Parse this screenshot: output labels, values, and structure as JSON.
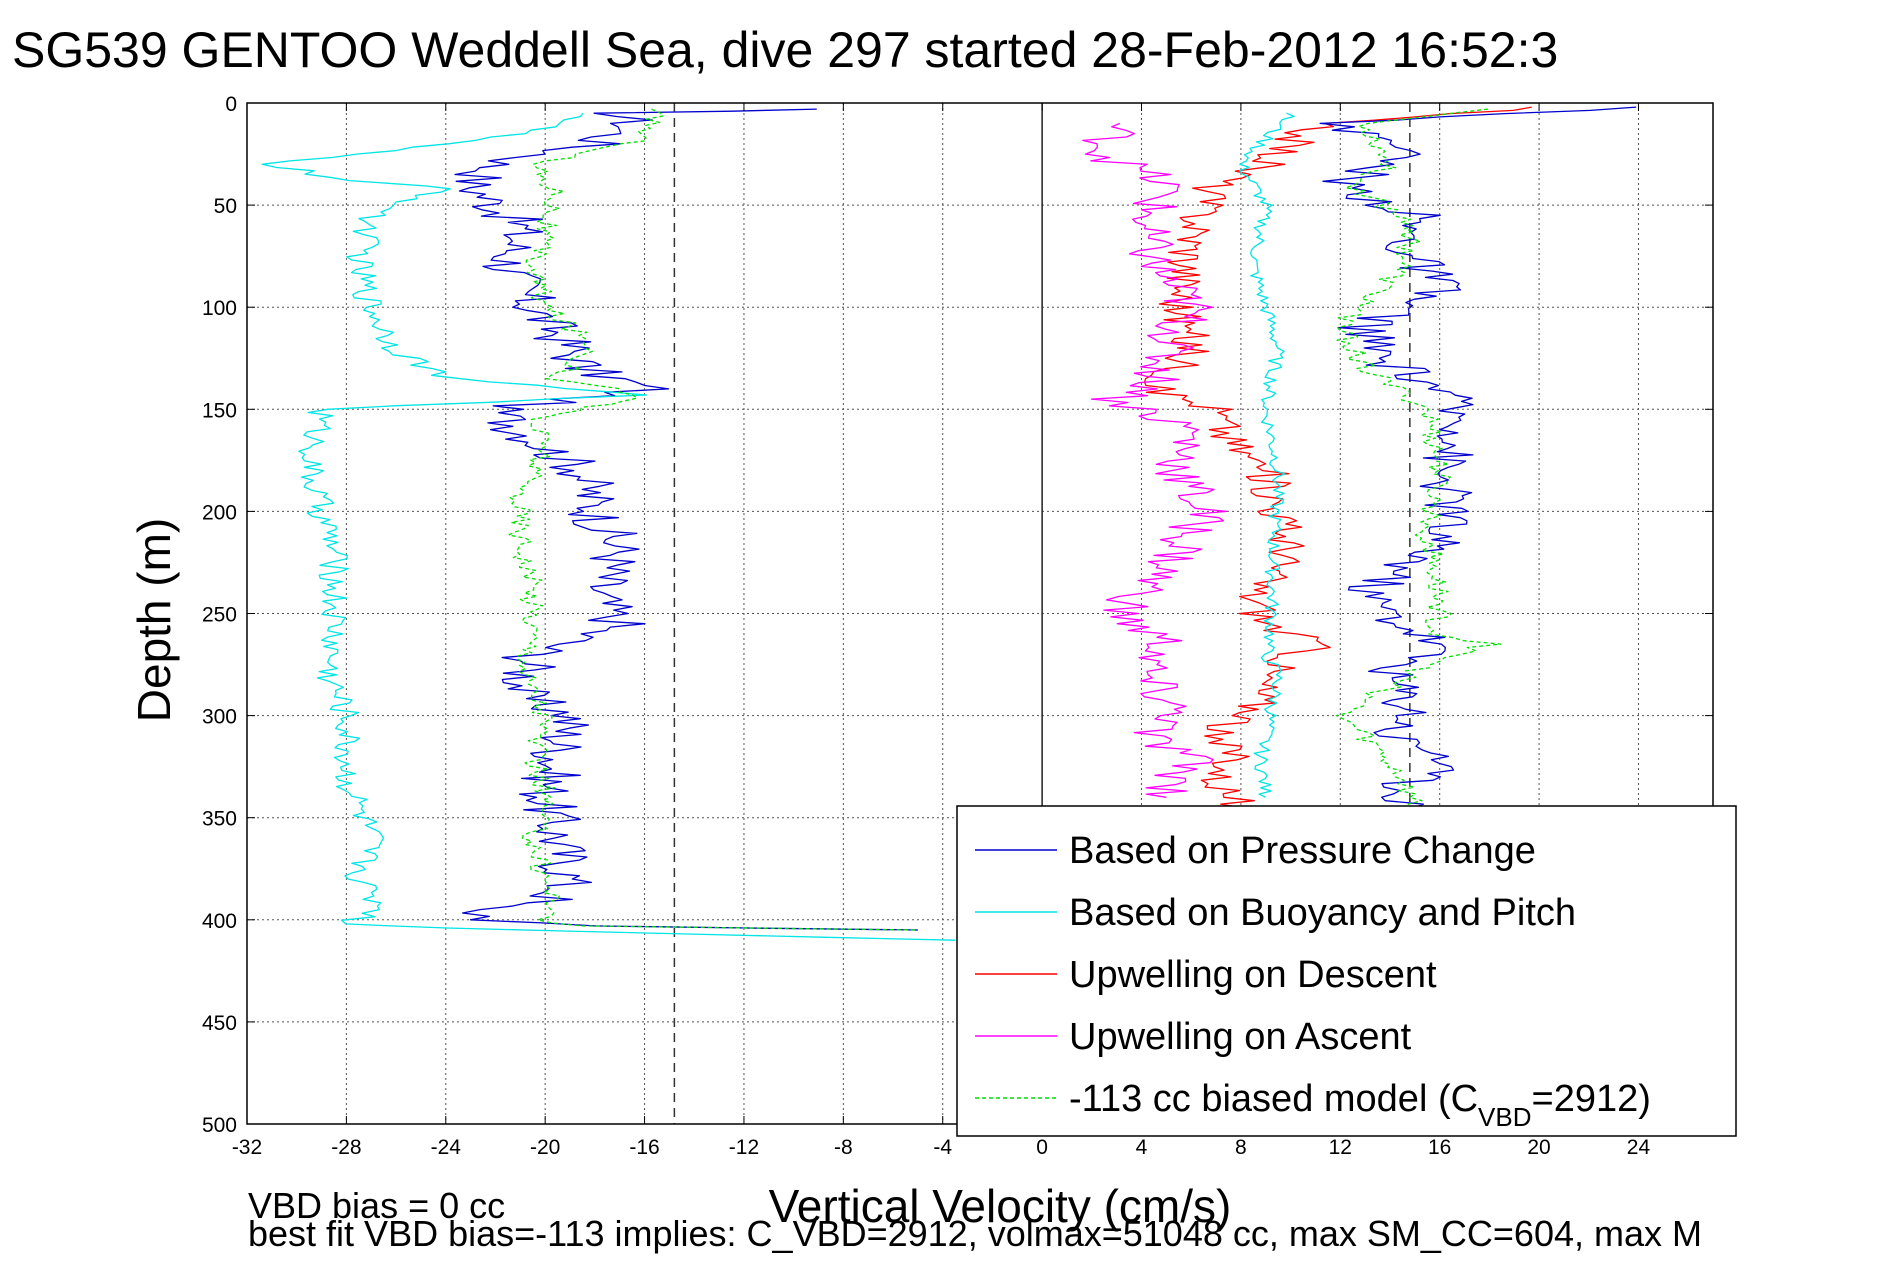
{
  "chart_data": {
    "type": "line",
    "title": "SG539 GENTOO Weddell Sea, dive 297 started 28-Feb-2012 16:52:3",
    "xlabel": "Vertical Velocity (cm/s)",
    "ylabel": "Depth (m)",
    "xlim": [
      -32,
      27
    ],
    "ylim": [
      0,
      500
    ],
    "y_reversed": true,
    "grid": true,
    "x_ticks": [
      -32,
      -28,
      -24,
      -20,
      -16,
      -12,
      -8,
      -4,
      0,
      4,
      8,
      12,
      16,
      20,
      24
    ],
    "y_ticks": [
      0,
      50,
      100,
      150,
      200,
      250,
      300,
      350,
      400,
      450,
      500
    ],
    "reference_lines": [
      {
        "style": "dashed",
        "x": -14.8
      },
      {
        "style": "solid",
        "x": 0
      },
      {
        "style": "dashed",
        "x": 14.8
      }
    ],
    "legend": {
      "placement": "bottom-right",
      "entries": [
        {
          "label": "Based on Pressure Change",
          "color": "#0000cc",
          "dash": "solid"
        },
        {
          "label": "Based on Buoyancy and Pitch",
          "color": "#00e5e5",
          "dash": "solid"
        },
        {
          "label": "Upwelling on Descent",
          "color": "#ff0000",
          "dash": "solid"
        },
        {
          "label": "Upwelling on Ascent",
          "color": "#ff00ff",
          "dash": "solid"
        },
        {
          "label_main": "-113 cc biased model (C",
          "label_sub": "VBD",
          "label_end": "=2912)",
          "color": "#00dd00",
          "dash": "dashed"
        }
      ]
    },
    "series": [
      {
        "name": "Based on Pressure Change",
        "color": "#0000cc",
        "dash": "solid",
        "x": [
          -10,
          -17,
          -16.5,
          -18,
          -22,
          -23,
          -21,
          -21.5,
          -20.5,
          -19,
          -18.5,
          -15.8,
          -22,
          -21,
          -18.5,
          -18,
          -17,
          -18,
          -17,
          -20.5,
          -21,
          -19,
          -19.5,
          -20,
          -19.5,
          -19,
          -19.8,
          -23,
          -22,
          -19,
          -5
        ],
        "y": [
          3,
          5,
          10,
          20,
          30,
          40,
          60,
          80,
          100,
          120,
          130,
          140,
          150,
          160,
          180,
          200,
          220,
          240,
          255,
          270,
          290,
          300,
          320,
          340,
          360,
          380,
          390,
          395,
          400,
          403,
          405
        ]
      },
      {
        "name": "Based on Buoyancy and Pitch",
        "color": "#00e5e5",
        "dash": "solid",
        "x": [
          -18,
          -21,
          -31,
          -28,
          -24,
          -27,
          -27.5,
          -27,
          -26,
          -24,
          -15.8,
          -29,
          -29.5,
          -28.5,
          -28.5,
          -28.7,
          -28,
          -28,
          -27,
          -27.5,
          -26.5,
          -28,
          -24,
          -3.5
        ],
        "y": [
          5,
          15,
          30,
          38,
          42,
          55,
          80,
          100,
          120,
          135,
          143,
          150,
          180,
          220,
          260,
          280,
          300,
          330,
          360,
          380,
          395,
          402,
          404,
          410
        ]
      },
      {
        "name": "Upwelling on Descent",
        "color": "#ff0000",
        "dash": "solid",
        "x": [
          20,
          11,
          9,
          7,
          6.5,
          6,
          5.5,
          6,
          5.5,
          4.5,
          7,
          7.5,
          9,
          9.5,
          10,
          8.5,
          9,
          11,
          9,
          8.5,
          6.5,
          8,
          7,
          8
        ],
        "y": [
          2,
          10,
          30,
          40,
          50,
          70,
          100,
          120,
          130,
          140,
          150,
          165,
          180,
          200,
          220,
          240,
          255,
          265,
          280,
          300,
          310,
          320,
          330,
          345
        ]
      },
      {
        "name": "Upwelling on Ascent",
        "color": "#ff00ff",
        "dash": "solid",
        "x": [
          3,
          2.5,
          5,
          4,
          4.5,
          6,
          5,
          4.5,
          3,
          6,
          5.5,
          6.5,
          5.5,
          4,
          3,
          5,
          4,
          5.5,
          4,
          6,
          5
        ],
        "y": [
          10,
          25,
          40,
          60,
          80,
          100,
          120,
          140,
          145,
          160,
          180,
          200,
          220,
          240,
          250,
          265,
          280,
          300,
          310,
          320,
          340
        ]
      },
      {
        "name": "-113 cc biased model (C_VBD=2912)",
        "color": "#00dd00",
        "dash": "dashed",
        "x": [
          -16,
          -15.5,
          -16.5,
          -20.5,
          -19.5,
          -20,
          -20.5,
          -20,
          -18,
          -19.5,
          -16,
          -20.5,
          -20,
          -21,
          -21,
          -20.5,
          -20.5,
          -20.8,
          -20,
          -20.5,
          -20,
          -20.5,
          -20,
          -19.5,
          -20.5,
          -18.5,
          -5
        ],
        "y": [
          3,
          8,
          20,
          30,
          45,
          60,
          80,
          100,
          120,
          135,
          143,
          155,
          170,
          190,
          210,
          240,
          260,
          280,
          300,
          320,
          340,
          360,
          380,
          395,
          400,
          403,
          405
        ]
      },
      {
        "name": "Based on Pressure Change (ascent)",
        "color": "#0000cc",
        "dash": "solid",
        "x": [
          25,
          11,
          15,
          13,
          12,
          15,
          14.5,
          16,
          13,
          13.5,
          16,
          17,
          16,
          16.5,
          15.5,
          13,
          14.5,
          16,
          14,
          15,
          14,
          16.5,
          14.5,
          15
        ],
        "y": [
          2,
          10,
          20,
          35,
          40,
          55,
          70,
          90,
          110,
          125,
          140,
          160,
          180,
          200,
          220,
          240,
          255,
          265,
          280,
          300,
          310,
          320,
          335,
          345
        ]
      },
      {
        "name": "Based on Buoyancy and Pitch (ascent)",
        "color": "#00e5e5",
        "dash": "solid",
        "x": [
          10,
          8,
          9,
          8.5,
          9,
          9.5,
          9,
          9.5,
          9.3,
          9.2,
          9,
          9.5,
          9.2,
          8.8,
          9
        ],
        "y": [
          5,
          30,
          50,
          80,
          100,
          120,
          150,
          180,
          220,
          260,
          270,
          280,
          300,
          320,
          340
        ]
      },
      {
        "name": "biased model (ascent)",
        "color": "#00dd00",
        "dash": "dashed",
        "x": [
          18,
          13,
          14,
          12.5,
          15,
          14.5,
          12,
          13,
          15.5,
          16,
          15.5,
          15.8,
          16,
          15.8,
          18,
          15.5,
          12,
          13,
          14.5,
          15
        ],
        "y": [
          3,
          10,
          30,
          40,
          60,
          80,
          110,
          130,
          150,
          180,
          210,
          230,
          250,
          260,
          265,
          275,
          300,
          310,
          330,
          345
        ]
      }
    ]
  },
  "footer": {
    "vbd_bias": "VBD bias = 0 cc",
    "best_fit": "best fit VBD bias=-113 implies: C_VBD=2912, volmax=51048 cc, max SM_CC=604, max M"
  }
}
